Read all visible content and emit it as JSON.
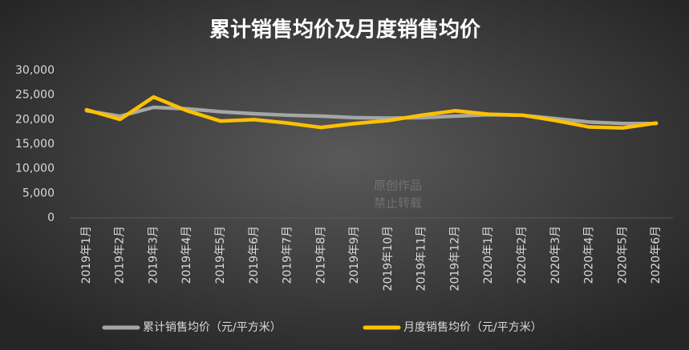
{
  "chart_data": {
    "type": "line",
    "title": "累计销售均价及月度销售均价",
    "categories": [
      "2019年1月",
      "2019年2月",
      "2019年3月",
      "2019年4月",
      "2019年5月",
      "2019年6月",
      "2019年7月",
      "2019年8月",
      "2019年9月",
      "2019年10月",
      "2019年11月",
      "2019年12月",
      "2020年1月",
      "2020年2月",
      "2020年3月",
      "2020年4月",
      "2020年5月",
      "2020年6月"
    ],
    "series": [
      {
        "name": "累计销售均价（元/平方米）",
        "color": "#a6a6a6",
        "values": [
          21800,
          20700,
          22500,
          22200,
          21600,
          21200,
          20900,
          20700,
          20400,
          20300,
          20400,
          20700,
          21000,
          20900,
          20200,
          19500,
          19200,
          19200
        ]
      },
      {
        "name": "月度销售均价（元/平方米）",
        "color": "#ffc000",
        "values": [
          22000,
          20050,
          24600,
          21800,
          19700,
          20000,
          19300,
          18400,
          19200,
          19800,
          20900,
          21800,
          21100,
          20900,
          19800,
          18500,
          18300,
          19300
        ]
      }
    ],
    "ylim": [
      0,
      30000
    ],
    "yticks": [
      0,
      {
        "value": 5000,
        "label": "5,000"
      },
      {
        "value": 10000,
        "label": "10,000"
      },
      {
        "value": 15000,
        "label": "15,000"
      },
      {
        "value": 20000,
        "label": "20,000"
      },
      {
        "value": 25000,
        "label": "25,000"
      },
      {
        "value": 30000,
        "label": "30,000"
      }
    ],
    "grid": false,
    "legend": "bottom",
    "watermark": [
      "原创作品",
      "禁止转载"
    ]
  }
}
